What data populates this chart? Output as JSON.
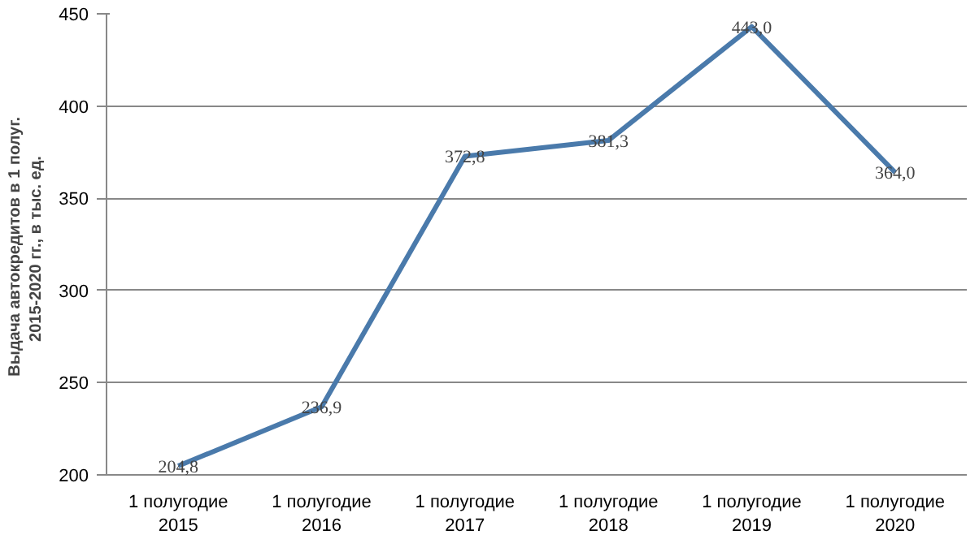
{
  "chart_data": {
    "type": "line",
    "ylabel": "Выдача автокредитов  в 1 полуг.  2015-2020 гг., в  тыс. ед.",
    "categories": [
      "1 полугодие 2015",
      "1 полугодие 2016",
      "1 полугодие 2017",
      "1 полугодие 2018",
      "1 полугодие 2019",
      "1 полугодие 2020"
    ],
    "series": [
      {
        "color": "#4a7aab",
        "values": [
          204.8,
          236.9,
          372.8,
          381.3,
          443.0,
          364.0
        ],
        "value_labels": [
          "204,8",
          "236,9",
          "372,8",
          "381,3",
          "443,0",
          "364,0"
        ]
      }
    ],
    "ylim": [
      200,
      450
    ],
    "yticks": [
      200,
      250,
      300,
      350,
      400,
      450
    ],
    "grid": "y",
    "marker": "none",
    "line_style": "solid"
  }
}
